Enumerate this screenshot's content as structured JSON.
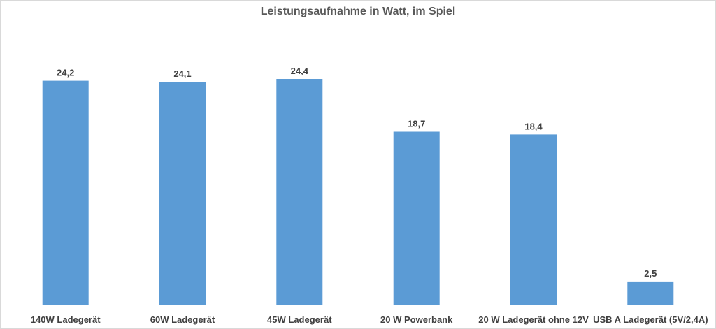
{
  "chart_data": {
    "type": "bar",
    "title": "Leistungsaufnahme in Watt, im Spiel",
    "categories": [
      "140W Ladegerät",
      "60W Ladegerät",
      "45W Ladegerät",
      "20 W Powerbank",
      "20 W Ladegerät ohne 12V",
      "USB A Ladegerät (5V/2,4A)"
    ],
    "values": [
      24.2,
      24.1,
      24.4,
      18.7,
      18.4,
      2.5
    ],
    "data_labels": [
      "24,2",
      "24,1",
      "24,4",
      "18,7",
      "18,4",
      "2,5"
    ],
    "xlabel": "",
    "ylabel": "",
    "ylim": [
      0,
      24.4
    ],
    "grid": false,
    "legend": "none",
    "bar_color": "#5b9bd5",
    "axis_color": "#d9d9d9",
    "text_color": "#404040"
  }
}
